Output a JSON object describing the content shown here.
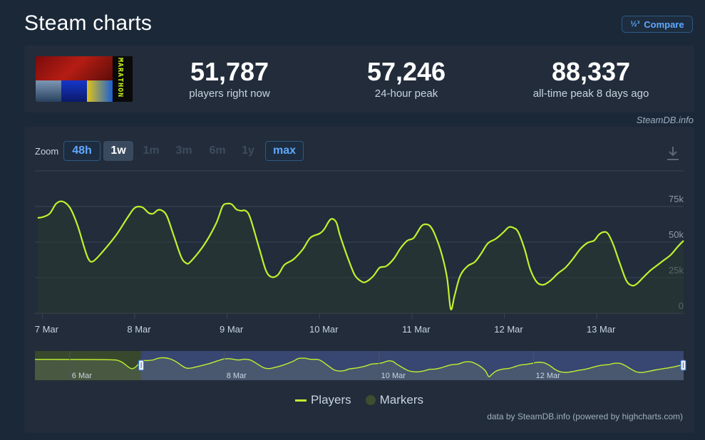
{
  "page": {
    "title": "Steam charts",
    "compare_label": "Compare",
    "compare_icon": "½³"
  },
  "game": {
    "thumb_label": "MARATHON"
  },
  "stats": [
    {
      "value": "51,787",
      "label": "players right now"
    },
    {
      "value": "57,246",
      "label": "24-hour peak"
    },
    {
      "value": "88,337",
      "label": "all-time peak 8 days ago"
    }
  ],
  "credit_top": "SteamDB.info",
  "zoom": {
    "label": "Zoom",
    "buttons": [
      {
        "label": "48h",
        "state": "outline"
      },
      {
        "label": "1w",
        "state": "selected"
      },
      {
        "label": "1m",
        "state": "disabled"
      },
      {
        "label": "3m",
        "state": "disabled"
      },
      {
        "label": "6m",
        "state": "disabled"
      },
      {
        "label": "1y",
        "state": "disabled"
      },
      {
        "label": "max",
        "state": "outline"
      }
    ]
  },
  "legend": {
    "players": "Players",
    "markers": "Markers"
  },
  "credit_bottom": "data by SteamDB.info (powered by highcharts.com)",
  "colors": {
    "line": "#bff22e",
    "background": "#1b2838",
    "card": "#222c3a",
    "accent": "#5fa8ff",
    "navigator_fill": "#3b4a7a"
  },
  "chart_data": {
    "type": "line",
    "title": "",
    "xlabel": "",
    "ylabel": "",
    "series": [
      {
        "name": "Players",
        "x_unit": "days since 7 Mar 00:00",
        "points": [
          [
            -0.05,
            67000
          ],
          [
            0.0,
            67500
          ],
          [
            0.08,
            70000
          ],
          [
            0.15,
            77000
          ],
          [
            0.22,
            78500
          ],
          [
            0.3,
            74000
          ],
          [
            0.38,
            62000
          ],
          [
            0.45,
            47000
          ],
          [
            0.5,
            38000
          ],
          [
            0.55,
            36500
          ],
          [
            0.65,
            43000
          ],
          [
            0.8,
            55000
          ],
          [
            0.92,
            67000
          ],
          [
            1.0,
            74000
          ],
          [
            1.08,
            74500
          ],
          [
            1.15,
            70500
          ],
          [
            1.2,
            70000
          ],
          [
            1.25,
            72500
          ],
          [
            1.3,
            72000
          ],
          [
            1.35,
            68000
          ],
          [
            1.42,
            55000
          ],
          [
            1.5,
            40000
          ],
          [
            1.55,
            35500
          ],
          [
            1.6,
            36000
          ],
          [
            1.75,
            48000
          ],
          [
            1.88,
            63000
          ],
          [
            1.95,
            75000
          ],
          [
            2.0,
            77000
          ],
          [
            2.05,
            76500
          ],
          [
            2.1,
            73000
          ],
          [
            2.15,
            72000
          ],
          [
            2.2,
            72000
          ],
          [
            2.25,
            67000
          ],
          [
            2.35,
            45000
          ],
          [
            2.42,
            30000
          ],
          [
            2.48,
            25500
          ],
          [
            2.55,
            27000
          ],
          [
            2.62,
            34000
          ],
          [
            2.72,
            38000
          ],
          [
            2.82,
            45000
          ],
          [
            2.9,
            53000
          ],
          [
            3.0,
            56000
          ],
          [
            3.05,
            59000
          ],
          [
            3.12,
            66000
          ],
          [
            3.18,
            64000
          ],
          [
            3.22,
            55000
          ],
          [
            3.3,
            40000
          ],
          [
            3.38,
            27000
          ],
          [
            3.45,
            22500
          ],
          [
            3.5,
            22000
          ],
          [
            3.58,
            26000
          ],
          [
            3.65,
            32000
          ],
          [
            3.72,
            33000
          ],
          [
            3.8,
            38000
          ],
          [
            3.88,
            46000
          ],
          [
            3.95,
            51000
          ],
          [
            4.02,
            53000
          ],
          [
            4.1,
            61000
          ],
          [
            4.15,
            62500
          ],
          [
            4.2,
            61000
          ],
          [
            4.25,
            55000
          ],
          [
            4.32,
            42000
          ],
          [
            4.38,
            25000
          ],
          [
            4.42,
            3000
          ],
          [
            4.46,
            12000
          ],
          [
            4.52,
            26000
          ],
          [
            4.6,
            33000
          ],
          [
            4.68,
            36000
          ],
          [
            4.75,
            42000
          ],
          [
            4.82,
            49000
          ],
          [
            4.9,
            52000
          ],
          [
            4.95,
            54500
          ],
          [
            5.0,
            57500
          ],
          [
            5.05,
            60500
          ],
          [
            5.1,
            60000
          ],
          [
            5.15,
            57000
          ],
          [
            5.22,
            45000
          ],
          [
            5.28,
            31000
          ],
          [
            5.35,
            22000
          ],
          [
            5.42,
            20000
          ],
          [
            5.5,
            23000
          ],
          [
            5.58,
            28000
          ],
          [
            5.66,
            32000
          ],
          [
            5.74,
            38000
          ],
          [
            5.82,
            45000
          ],
          [
            5.9,
            49500
          ],
          [
            5.97,
            51000
          ],
          [
            6.02,
            55000
          ],
          [
            6.07,
            57000
          ],
          [
            6.12,
            56000
          ],
          [
            6.18,
            48000
          ],
          [
            6.25,
            35000
          ],
          [
            6.32,
            23000
          ],
          [
            6.38,
            19500
          ],
          [
            6.43,
            20500
          ],
          [
            6.5,
            25000
          ],
          [
            6.58,
            30000
          ],
          [
            6.65,
            33500
          ],
          [
            6.72,
            37000
          ],
          [
            6.8,
            41000
          ],
          [
            6.88,
            47000
          ],
          [
            6.94,
            51000
          ]
        ]
      }
    ],
    "x_ticks": [
      "7 Mar",
      "8 Mar",
      "9 Mar",
      "10 Mar",
      "11 Mar",
      "12 Mar",
      "13 Mar"
    ],
    "y_ticks": [
      "0",
      "25k",
      "50k",
      "75k"
    ],
    "ylim": [
      0,
      100000
    ],
    "xlim": [
      -0.08,
      6.94
    ],
    "grid": true,
    "legend_position": "bottom",
    "navigator": {
      "date_labels": [
        "6 Mar",
        "8 Mar",
        "10 Mar",
        "12 Mar"
      ],
      "selection_start_days": -0.08,
      "selection_end_days": 6.94
    }
  }
}
